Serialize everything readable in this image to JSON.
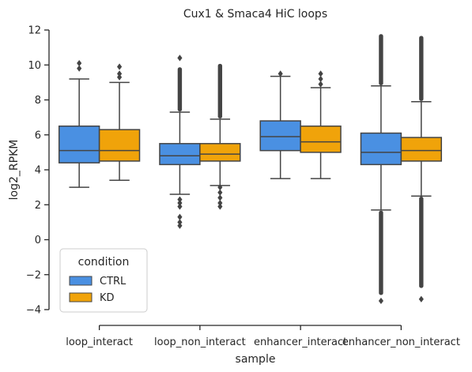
{
  "chart_data": {
    "type": "box",
    "title": "Cux1 & Smaca4 HiC loops",
    "xlabel": "sample",
    "ylabel": "log2_RPKM",
    "ylim": [
      -4,
      12
    ],
    "yticks": [
      -4,
      -2,
      0,
      2,
      4,
      6,
      8,
      10,
      12
    ],
    "grid": false,
    "categories": [
      "loop_interact",
      "loop_non_interact",
      "enhancer_interact",
      "enhancer_non_interact"
    ],
    "legend": {
      "title": "condition",
      "placement": "lower-left"
    },
    "series": [
      {
        "name": "CTRL",
        "color": "#4a90e2",
        "boxes": [
          {
            "whisker_low": 3.0,
            "q1": 4.4,
            "median": 5.1,
            "q3": 6.5,
            "whisker_high": 9.2,
            "outliers": [
              9.8,
              10.1
            ],
            "outlier_range": null
          },
          {
            "whisker_low": 2.6,
            "q1": 4.3,
            "median": 4.8,
            "q3": 5.5,
            "whisker_high": 7.3,
            "outliers": [
              0.8,
              1.0,
              1.3,
              1.9,
              2.1,
              2.3,
              10.4
            ],
            "outlier_range": [
              7.5,
              9.7
            ]
          },
          {
            "whisker_low": 3.5,
            "q1": 5.1,
            "median": 5.9,
            "q3": 6.8,
            "whisker_high": 9.35,
            "outliers": [
              9.5
            ],
            "outlier_range": null
          },
          {
            "whisker_low": 1.7,
            "q1": 4.3,
            "median": 5.0,
            "q3": 6.1,
            "whisker_high": 8.8,
            "outliers": [
              -3.5
            ],
            "outlier_range_low": [
              -3.0,
              1.5
            ],
            "outlier_range": [
              9.0,
              11.6
            ]
          }
        ]
      },
      {
        "name": "KD",
        "color": "#f0a30a",
        "boxes": [
          {
            "whisker_low": 3.4,
            "q1": 4.5,
            "median": 5.1,
            "q3": 6.3,
            "whisker_high": 9.0,
            "outliers": [
              9.3,
              9.5,
              9.9
            ],
            "outlier_range": null
          },
          {
            "whisker_low": 3.1,
            "q1": 4.5,
            "median": 4.9,
            "q3": 5.5,
            "whisker_high": 6.9,
            "outliers": [
              1.9,
              2.1,
              2.4,
              2.7,
              3.0
            ],
            "outlier_range": [
              7.1,
              9.9
            ]
          },
          {
            "whisker_low": 3.5,
            "q1": 5.0,
            "median": 5.6,
            "q3": 6.5,
            "whisker_high": 8.7,
            "outliers": [
              8.9,
              9.2,
              9.5
            ],
            "outlier_range": null
          },
          {
            "whisker_low": 2.5,
            "q1": 4.5,
            "median": 5.1,
            "q3": 5.85,
            "whisker_high": 7.9,
            "outliers": [
              -3.4
            ],
            "outlier_range_low": [
              -2.6,
              2.3
            ],
            "outlier_range": [
              8.1,
              11.5
            ]
          }
        ]
      }
    ]
  }
}
